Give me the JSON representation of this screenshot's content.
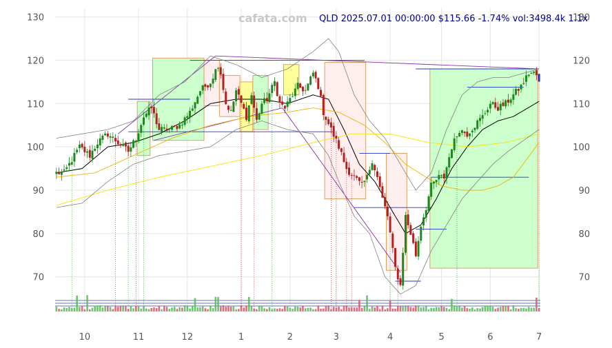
{
  "watermark": "cafata.com",
  "header": "QLD 2025.07.01 00:00:00 $115.66 -1.74% vol:3498.4k 1.1x",
  "chart_data": {
    "type": "candlestick",
    "ticker": "QLD",
    "ylim": [
      62,
      132
    ],
    "y_ticks": [
      70,
      80,
      90,
      100,
      110,
      120,
      130
    ],
    "x_ticks": [
      {
        "label": "10",
        "index": 11
      },
      {
        "label": "11",
        "index": 32
      },
      {
        "label": "12",
        "index": 51
      },
      {
        "label": "1",
        "index": 72
      },
      {
        "label": "2",
        "index": 91
      },
      {
        "label": "3",
        "index": 109
      },
      {
        "label": "4",
        "index": 130
      },
      {
        "label": "5",
        "index": 150
      },
      {
        "label": "6",
        "index": 169
      },
      {
        "label": "7",
        "index": 188
      }
    ],
    "close_anchors": [
      [
        0,
        94
      ],
      [
        3,
        94
      ],
      [
        6,
        97
      ],
      [
        9,
        100
      ],
      [
        13,
        98
      ],
      [
        16,
        101
      ],
      [
        20,
        103
      ],
      [
        24,
        101
      ],
      [
        28,
        99
      ],
      [
        31,
        102
      ],
      [
        34,
        107
      ],
      [
        37,
        109
      ],
      [
        40,
        104
      ],
      [
        44,
        104
      ],
      [
        48,
        105
      ],
      [
        52,
        108
      ],
      [
        56,
        113
      ],
      [
        60,
        115
      ],
      [
        63,
        119
      ],
      [
        64,
        117
      ],
      [
        66,
        110
      ],
      [
        68,
        108
      ],
      [
        70,
        113
      ],
      [
        72,
        110
      ],
      [
        74,
        107
      ],
      [
        76,
        112
      ],
      [
        78,
        106
      ],
      [
        80,
        110
      ],
      [
        82,
        111
      ],
      [
        85,
        115
      ],
      [
        87,
        110
      ],
      [
        89,
        109
      ],
      [
        91,
        111
      ],
      [
        94,
        114
      ],
      [
        97,
        113
      ],
      [
        100,
        117
      ],
      [
        102,
        114
      ],
      [
        104,
        108
      ],
      [
        107,
        104
      ],
      [
        110,
        100
      ],
      [
        113,
        95
      ],
      [
        116,
        93
      ],
      [
        119,
        91
      ],
      [
        121,
        93
      ],
      [
        123,
        97
      ],
      [
        125,
        93
      ],
      [
        127,
        88
      ],
      [
        129,
        84
      ],
      [
        130,
        80
      ],
      [
        132,
        72
      ],
      [
        134,
        68
      ],
      [
        136,
        84
      ],
      [
        138,
        80
      ],
      [
        140,
        75
      ],
      [
        142,
        82
      ],
      [
        144,
        86
      ],
      [
        146,
        91
      ],
      [
        149,
        93
      ],
      [
        151,
        93
      ],
      [
        154,
        100
      ],
      [
        157,
        104
      ],
      [
        160,
        103
      ],
      [
        163,
        105
      ],
      [
        166,
        107
      ],
      [
        169,
        110
      ],
      [
        172,
        109
      ],
      [
        175,
        110
      ],
      [
        178,
        112
      ],
      [
        181,
        114
      ],
      [
        184,
        117
      ],
      [
        186,
        117
      ],
      [
        188,
        116
      ]
    ],
    "indicators": {
      "ma_short": {
        "color": "#000000",
        "points": [
          [
            0,
            94
          ],
          [
            10,
            95
          ],
          [
            20,
            100
          ],
          [
            30,
            101
          ],
          [
            40,
            103
          ],
          [
            50,
            106
          ],
          [
            60,
            110
          ],
          [
            70,
            111
          ],
          [
            80,
            111
          ],
          [
            90,
            110
          ],
          [
            100,
            112
          ],
          [
            106,
            111
          ],
          [
            112,
            104
          ],
          [
            118,
            96
          ],
          [
            124,
            92
          ],
          [
            130,
            86
          ],
          [
            136,
            80
          ],
          [
            142,
            82
          ],
          [
            148,
            88
          ],
          [
            154,
            95
          ],
          [
            160,
            100
          ],
          [
            166,
            104
          ],
          [
            172,
            106
          ],
          [
            178,
            107
          ],
          [
            188,
            110.5
          ]
        ]
      },
      "ma_mid": {
        "color": "#f0b400",
        "points": [
          [
            0,
            93
          ],
          [
            15,
            94
          ],
          [
            30,
            98
          ],
          [
            45,
            102
          ],
          [
            60,
            105
          ],
          [
            75,
            107
          ],
          [
            90,
            108
          ],
          [
            100,
            109
          ],
          [
            110,
            108
          ],
          [
            120,
            105
          ],
          [
            128,
            101
          ],
          [
            136,
            96
          ],
          [
            144,
            93
          ],
          [
            150,
            91
          ],
          [
            158,
            90
          ],
          [
            166,
            90
          ],
          [
            172,
            91
          ],
          [
            178,
            93
          ],
          [
            188,
            101
          ]
        ]
      },
      "ma_long": {
        "color": "#ffe000",
        "points": [
          [
            0,
            86.5
          ],
          [
            20,
            90
          ],
          [
            40,
            93
          ],
          [
            60,
            95.5
          ],
          [
            80,
            98
          ],
          [
            100,
            101
          ],
          [
            115,
            103
          ],
          [
            130,
            103
          ],
          [
            145,
            101
          ],
          [
            160,
            100
          ],
          [
            175,
            101
          ],
          [
            188,
            103
          ]
        ]
      },
      "bb_upper": {
        "color": "#808080",
        "points": [
          [
            0,
            102
          ],
          [
            10,
            103
          ],
          [
            20,
            104
          ],
          [
            30,
            106
          ],
          [
            40,
            112
          ],
          [
            50,
            115
          ],
          [
            60,
            121
          ],
          [
            70,
            119
          ],
          [
            80,
            116
          ],
          [
            90,
            118
          ],
          [
            100,
            122
          ],
          [
            106,
            125
          ],
          [
            110,
            122
          ],
          [
            116,
            112
          ],
          [
            122,
            106
          ],
          [
            128,
            102
          ],
          [
            134,
            96
          ],
          [
            140,
            90
          ],
          [
            146,
            94
          ],
          [
            152,
            104
          ],
          [
            158,
            112
          ],
          [
            164,
            115
          ],
          [
            170,
            116
          ],
          [
            176,
            116
          ],
          [
            188,
            118
          ]
        ]
      },
      "bb_lower": {
        "color": "#808080",
        "points": [
          [
            0,
            86
          ],
          [
            10,
            87
          ],
          [
            20,
            92
          ],
          [
            30,
            96
          ],
          [
            40,
            98
          ],
          [
            50,
            99
          ],
          [
            60,
            100
          ],
          [
            70,
            104
          ],
          [
            80,
            106
          ],
          [
            90,
            104
          ],
          [
            100,
            103
          ],
          [
            106,
            98
          ],
          [
            110,
            92
          ],
          [
            116,
            84
          ],
          [
            122,
            80
          ],
          [
            128,
            70
          ],
          [
            134,
            66
          ],
          [
            140,
            68
          ],
          [
            146,
            76
          ],
          [
            152,
            82
          ],
          [
            158,
            88
          ],
          [
            164,
            92
          ],
          [
            170,
            96
          ],
          [
            176,
            99
          ],
          [
            188,
            104
          ]
        ]
      }
    },
    "zones": [
      {
        "type": "up",
        "x0": 32,
        "x1": 37,
        "y0": 98,
        "y1": 110.5
      },
      {
        "type": "up",
        "x0": 38,
        "x1": 58,
        "y0": 101.5,
        "y1": 120.5
      },
      {
        "type": "down",
        "x0": 58,
        "x1": 64,
        "y0": 109.5,
        "y1": 120
      },
      {
        "type": "down",
        "x0": 64,
        "x1": 72,
        "y0": 107,
        "y1": 116.5
      },
      {
        "type": "flat",
        "x0": 72,
        "x1": 77,
        "y0": 103.5,
        "y1": 115
      },
      {
        "type": "up",
        "x0": 77,
        "x1": 83,
        "y0": 104,
        "y1": 116.5
      },
      {
        "type": "flat",
        "x0": 89,
        "x1": 95,
        "y0": 112,
        "y1": 119
      },
      {
        "type": "down",
        "x0": 105,
        "x1": 121,
        "y0": 88,
        "y1": 119.5
      },
      {
        "type": "down",
        "x0": 129,
        "x1": 137,
        "y0": 71.5,
        "y1": 98.5
      },
      {
        "type": "up",
        "x0": 146,
        "x1": 188,
        "y0": 72,
        "y1": 118
      }
    ],
    "h_levels": [
      {
        "x0": 52,
        "x1": 120,
        "y": 120
      },
      {
        "x0": 140,
        "x1": 188,
        "y": 118
      },
      {
        "x0": 160,
        "x1": 182,
        "y": 113.8
      },
      {
        "x0": 28,
        "x1": 52,
        "y": 111
      },
      {
        "x0": 28,
        "x1": 108,
        "y": 103.5
      },
      {
        "x0": 118,
        "x1": 130,
        "y": 98.5
      },
      {
        "x0": 146,
        "x1": 184,
        "y": 93
      },
      {
        "x0": 116,
        "x1": 146,
        "y": 86
      },
      {
        "x0": 140,
        "x1": 152,
        "y": 81
      },
      {
        "x0": 132,
        "x1": 142,
        "y": 69
      }
    ],
    "trend_lines": [
      {
        "x0": 24,
        "y0": 103,
        "x1": 62,
        "y1": 121
      },
      {
        "x0": 62,
        "y0": 121,
        "x1": 188,
        "y1": 118
      },
      {
        "x0": 38,
        "y0": 101.5,
        "x1": 88,
        "y1": 109
      },
      {
        "x0": 88,
        "y0": 109,
        "x1": 134,
        "y1": 71
      }
    ],
    "signal_lines": [
      {
        "index": 6,
        "color": "green"
      },
      {
        "index": 23,
        "color": "green"
      },
      {
        "index": 28,
        "color": "green"
      },
      {
        "index": 31,
        "color": "red"
      },
      {
        "index": 34,
        "color": "green"
      },
      {
        "index": 72,
        "color": "red"
      },
      {
        "index": 77,
        "color": "red"
      },
      {
        "index": 84,
        "color": "green"
      },
      {
        "index": 107,
        "color": "red"
      },
      {
        "index": 109,
        "color": "red"
      },
      {
        "index": 113,
        "color": "red"
      },
      {
        "index": 115,
        "color": "red"
      },
      {
        "index": 130,
        "color": "green"
      },
      {
        "index": 133,
        "color": "red"
      },
      {
        "index": 156,
        "color": "green"
      },
      {
        "index": 188,
        "color": "green"
      }
    ],
    "last": {
      "date": "2025.07.01 00:00:00",
      "close": 115.66,
      "change_pct": -1.74,
      "volume_k": 3498.4,
      "volume_ratio": 1.1
    }
  }
}
